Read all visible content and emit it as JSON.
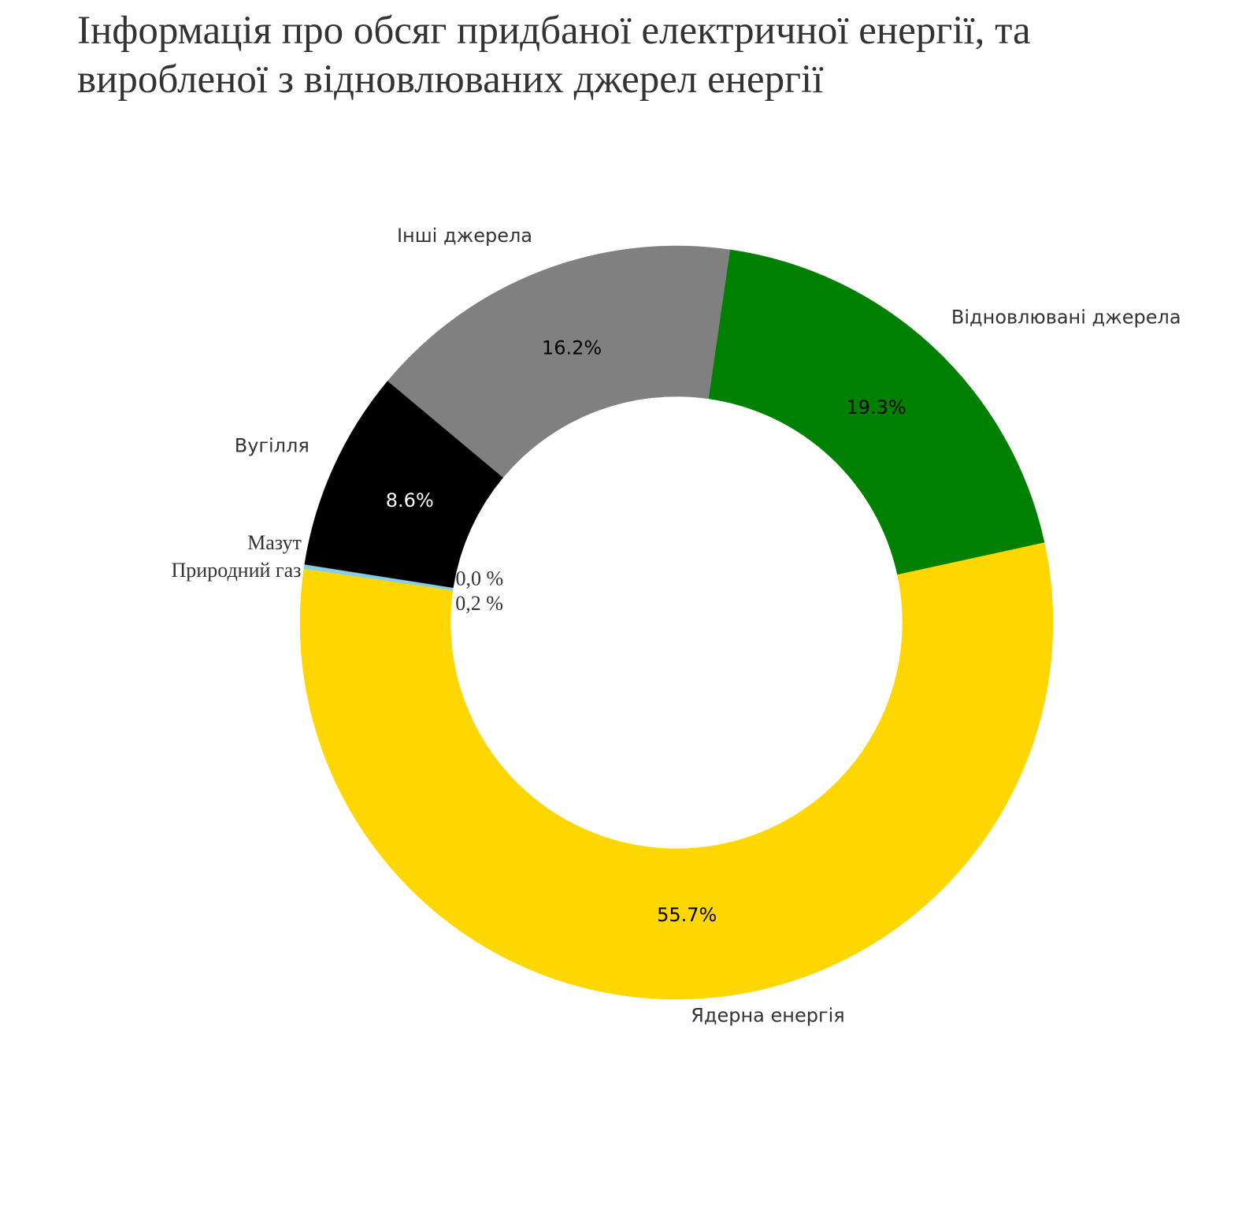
{
  "chart_data": {
    "type": "donut",
    "title": "Інформація про обсяг придбаної електричної енергії, та виробленої з відновлюваних джерел енергії",
    "categories": [
      "Ядерна енергія",
      "Природний газ",
      "Мазут",
      "Вугілля",
      "Інші джерела",
      "Відновлювані джерела"
    ],
    "values": [
      55.7,
      0.2,
      0.0,
      8.6,
      16.2,
      19.3
    ],
    "value_labels": [
      "55.7%",
      "0,2 %",
      "0,0 %",
      "8.6%",
      "16.2%",
      "19.3%"
    ],
    "colors": [
      "#ffd700",
      "#87ceeb",
      "#4a4a4a",
      "#000000",
      "#808080",
      "#008000"
    ]
  }
}
